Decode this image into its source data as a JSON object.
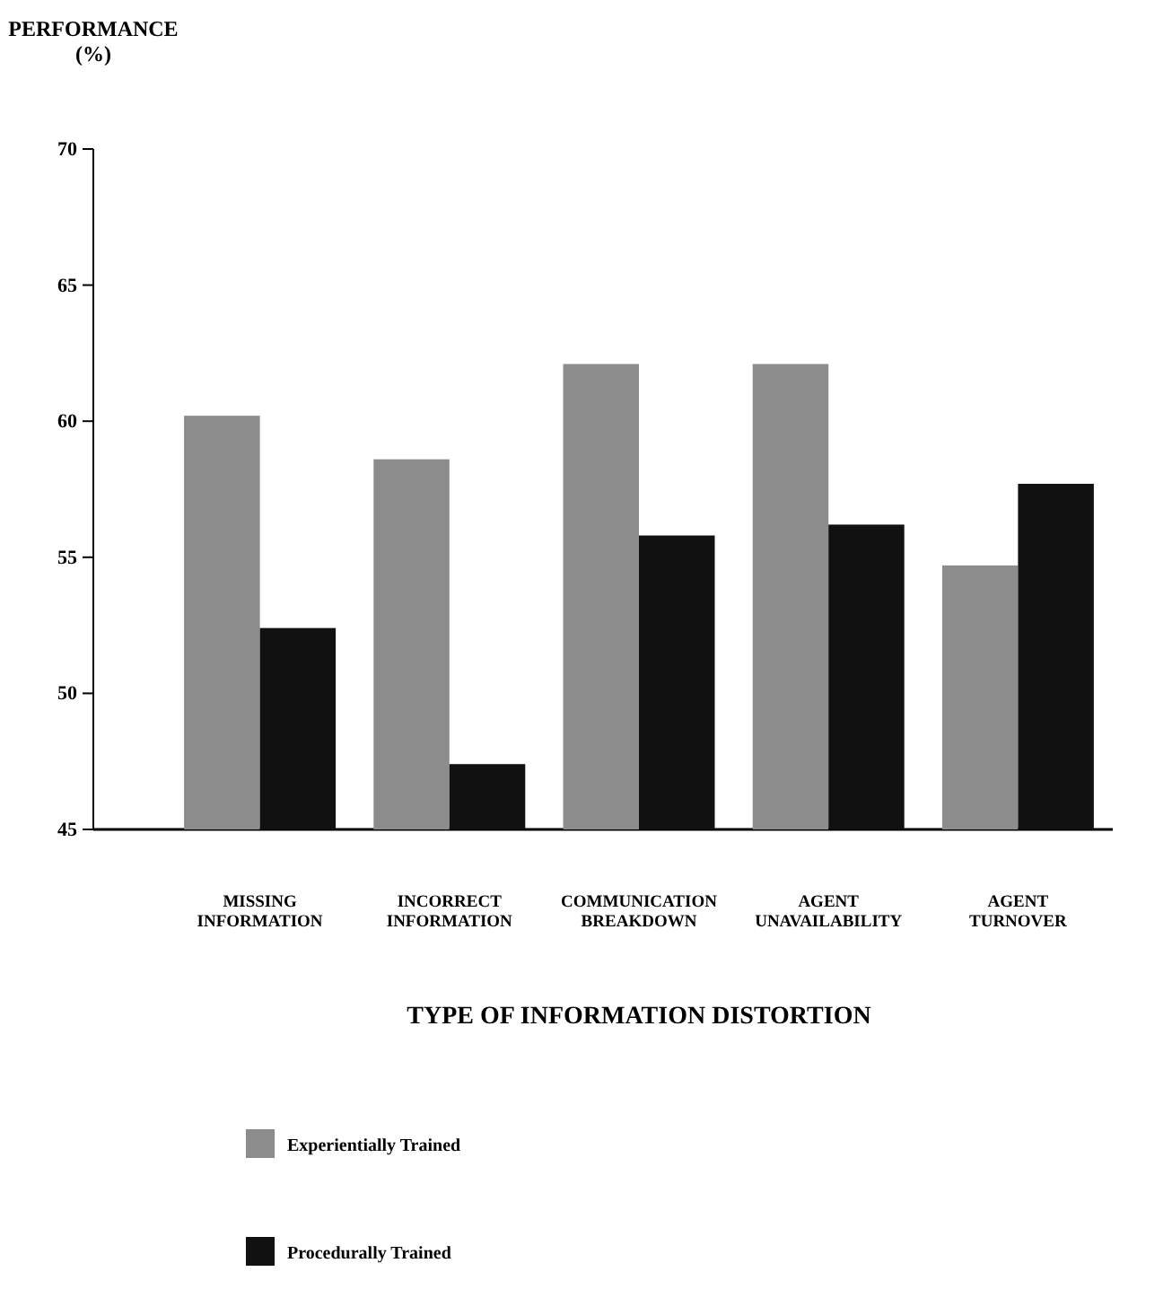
{
  "chart_data": {
    "type": "bar",
    "xlabel": "TYPE OF INFORMATION DISTORTION",
    "ylabel": "PERFORMANCE (%)",
    "categories": [
      "MISSING INFORMATION",
      "INCORRECT INFORMATION",
      "COMMUNICATION BREAKDOWN",
      "AGENT UNAVAILABILITY",
      "AGENT TURNOVER"
    ],
    "series": [
      {
        "name": "Experientially Trained",
        "color": "#8c8c8c",
        "values": [
          60.2,
          58.6,
          62.1,
          62.1,
          54.7
        ]
      },
      {
        "name": "Procedurally Trained",
        "color": "#111111",
        "values": [
          52.4,
          47.4,
          55.8,
          56.2,
          57.7
        ]
      }
    ],
    "ylim": [
      45,
      70
    ],
    "yticks": [
      45,
      50,
      55,
      60,
      65,
      70
    ],
    "legend": "bottom",
    "grid": false
  }
}
